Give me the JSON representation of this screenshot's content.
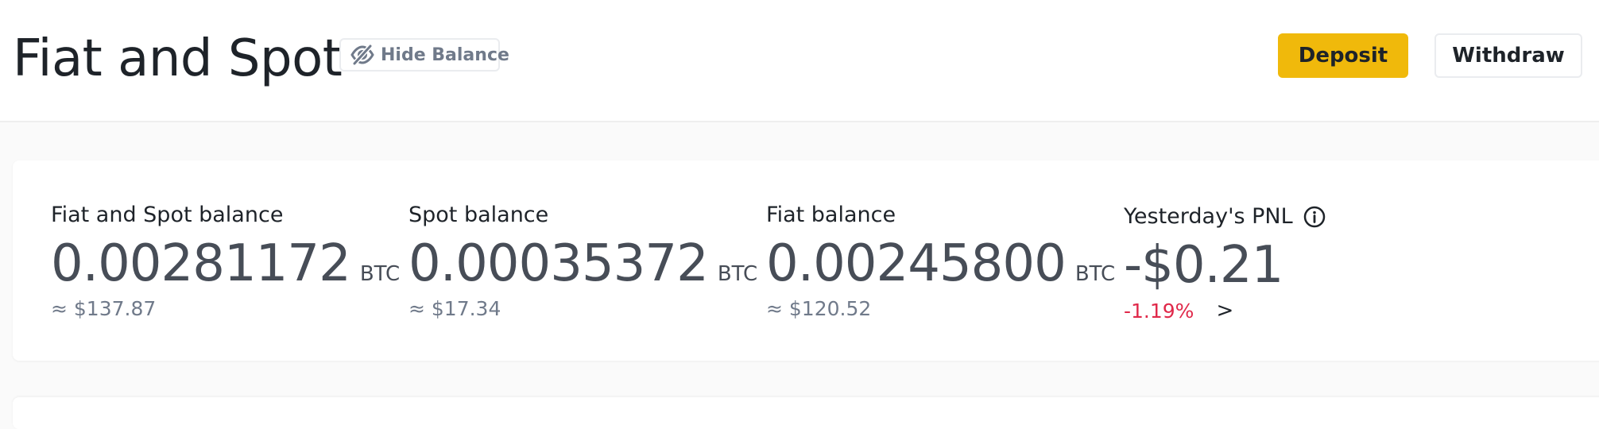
{
  "header": {
    "title": "Fiat and Spot",
    "hide_balance_label": "Hide Balance",
    "deposit_label": "Deposit",
    "withdraw_label": "Withdraw"
  },
  "balances": [
    {
      "label": "Fiat and Spot balance",
      "value": "0.00281172",
      "unit": "BTC",
      "approx": "≈ $137.87"
    },
    {
      "label": "Spot balance",
      "value": "0.00035372",
      "unit": "BTC",
      "approx": "≈ $17.34"
    },
    {
      "label": "Fiat balance",
      "value": "0.00245800",
      "unit": "BTC",
      "approx": "≈ $120.52"
    }
  ],
  "pnl": {
    "label": "Yesterday's PNL",
    "value": "-$0.21",
    "change": "-1.19%",
    "arrow": ">"
  },
  "colors": {
    "accent": "#f0b90b",
    "negative": "#e0294a",
    "muted": "#707a8a"
  },
  "icons": {
    "hide_balance": "eye-slash-icon",
    "pnl_info": "info-icon"
  }
}
